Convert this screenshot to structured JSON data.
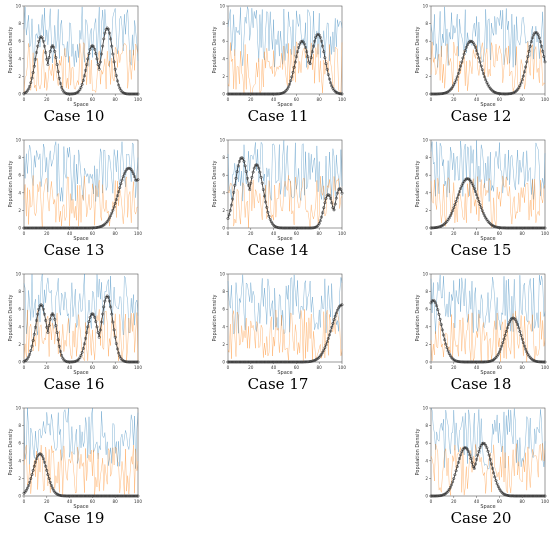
{
  "figure": {
    "xlabel": "Space",
    "ylabel": "Population Density",
    "xlim": [
      0,
      100
    ],
    "ylim": [
      0,
      10
    ],
    "xticks": [
      0,
      20,
      40,
      60,
      80,
      100
    ],
    "yticks": [
      0,
      2,
      4,
      6,
      8,
      10
    ],
    "colors": {
      "series_a": "#1f77b4",
      "series_b": "#ff7f0e",
      "markers": "#333333"
    }
  },
  "chart_data": [
    {
      "type": "line",
      "caption": "Case 10",
      "ylim": [
        0,
        10
      ],
      "bumps": [
        [
          15,
          5,
          6.5
        ],
        [
          25,
          4,
          5.5
        ],
        [
          60,
          5,
          5.5
        ],
        [
          73,
          5,
          7.5
        ]
      ],
      "xlabel": "Space",
      "ylabel": "Population Density"
    },
    {
      "type": "line",
      "caption": "Case 11",
      "ylim": [
        0,
        10
      ],
      "bumps": [
        [
          65,
          6,
          6.0
        ],
        [
          79,
          6,
          6.8
        ]
      ],
      "xlabel": "Space",
      "ylabel": "Population Density"
    },
    {
      "type": "line",
      "caption": "Case 12",
      "ylim": [
        0,
        10
      ],
      "bumps": [
        [
          35,
          8,
          6.0
        ],
        [
          92,
          7,
          7.0
        ]
      ],
      "xlabel": "Space",
      "ylabel": "Population Density"
    },
    {
      "type": "line",
      "caption": "Case 13",
      "ylim": [
        0,
        10
      ],
      "bumps": [
        [
          92,
          9,
          6.8
        ],
        [
          100,
          6,
          5.5
        ]
      ],
      "xlabel": "Space",
      "ylabel": "Population Density"
    },
    {
      "type": "line",
      "caption": "Case 14",
      "ylim": [
        0,
        10
      ],
      "bumps": [
        [
          12,
          6,
          8.0
        ],
        [
          25,
          6,
          7.2
        ],
        [
          88,
          4,
          3.8
        ],
        [
          98,
          4,
          4.5
        ]
      ],
      "xlabel": "Space",
      "ylabel": "Population Density"
    },
    {
      "type": "line",
      "caption": "Case 15",
      "ylim": [
        0,
        10
      ],
      "bumps": [
        [
          32,
          9,
          5.6
        ]
      ],
      "xlabel": "Space",
      "ylabel": "Population Density"
    },
    {
      "type": "line",
      "caption": "Case 16",
      "ylim": [
        0,
        10
      ],
      "bumps": [
        [
          15,
          5,
          6.5
        ],
        [
          25,
          4,
          5.5
        ],
        [
          60,
          5,
          5.5
        ],
        [
          73,
          5,
          7.5
        ]
      ],
      "xlabel": "Space",
      "ylabel": "Population Density"
    },
    {
      "type": "line",
      "caption": "Case 17",
      "ylim": [
        0,
        10
      ],
      "bumps": [
        [
          100,
          9,
          6.5
        ]
      ],
      "xlabel": "Space",
      "ylabel": "Population Density"
    },
    {
      "type": "line",
      "caption": "Case 18",
      "ylim": [
        0,
        10
      ],
      "bumps": [
        [
          2,
          7,
          7.0
        ],
        [
          72,
          7,
          5.0
        ]
      ],
      "xlabel": "Space",
      "ylabel": "Population Density"
    },
    {
      "type": "line",
      "caption": "Case 19",
      "ylim": [
        0,
        10
      ],
      "bumps": [
        [
          14,
          6,
          4.8
        ]
      ],
      "xlabel": "Space",
      "ylabel": "Population Density"
    },
    {
      "type": "line",
      "caption": "Case 20",
      "ylim": [
        0,
        10
      ],
      "bumps": [
        [
          30,
          7,
          5.5
        ],
        [
          46,
          7,
          6.0
        ]
      ],
      "xlabel": "Space",
      "ylabel": "Population Density"
    }
  ]
}
